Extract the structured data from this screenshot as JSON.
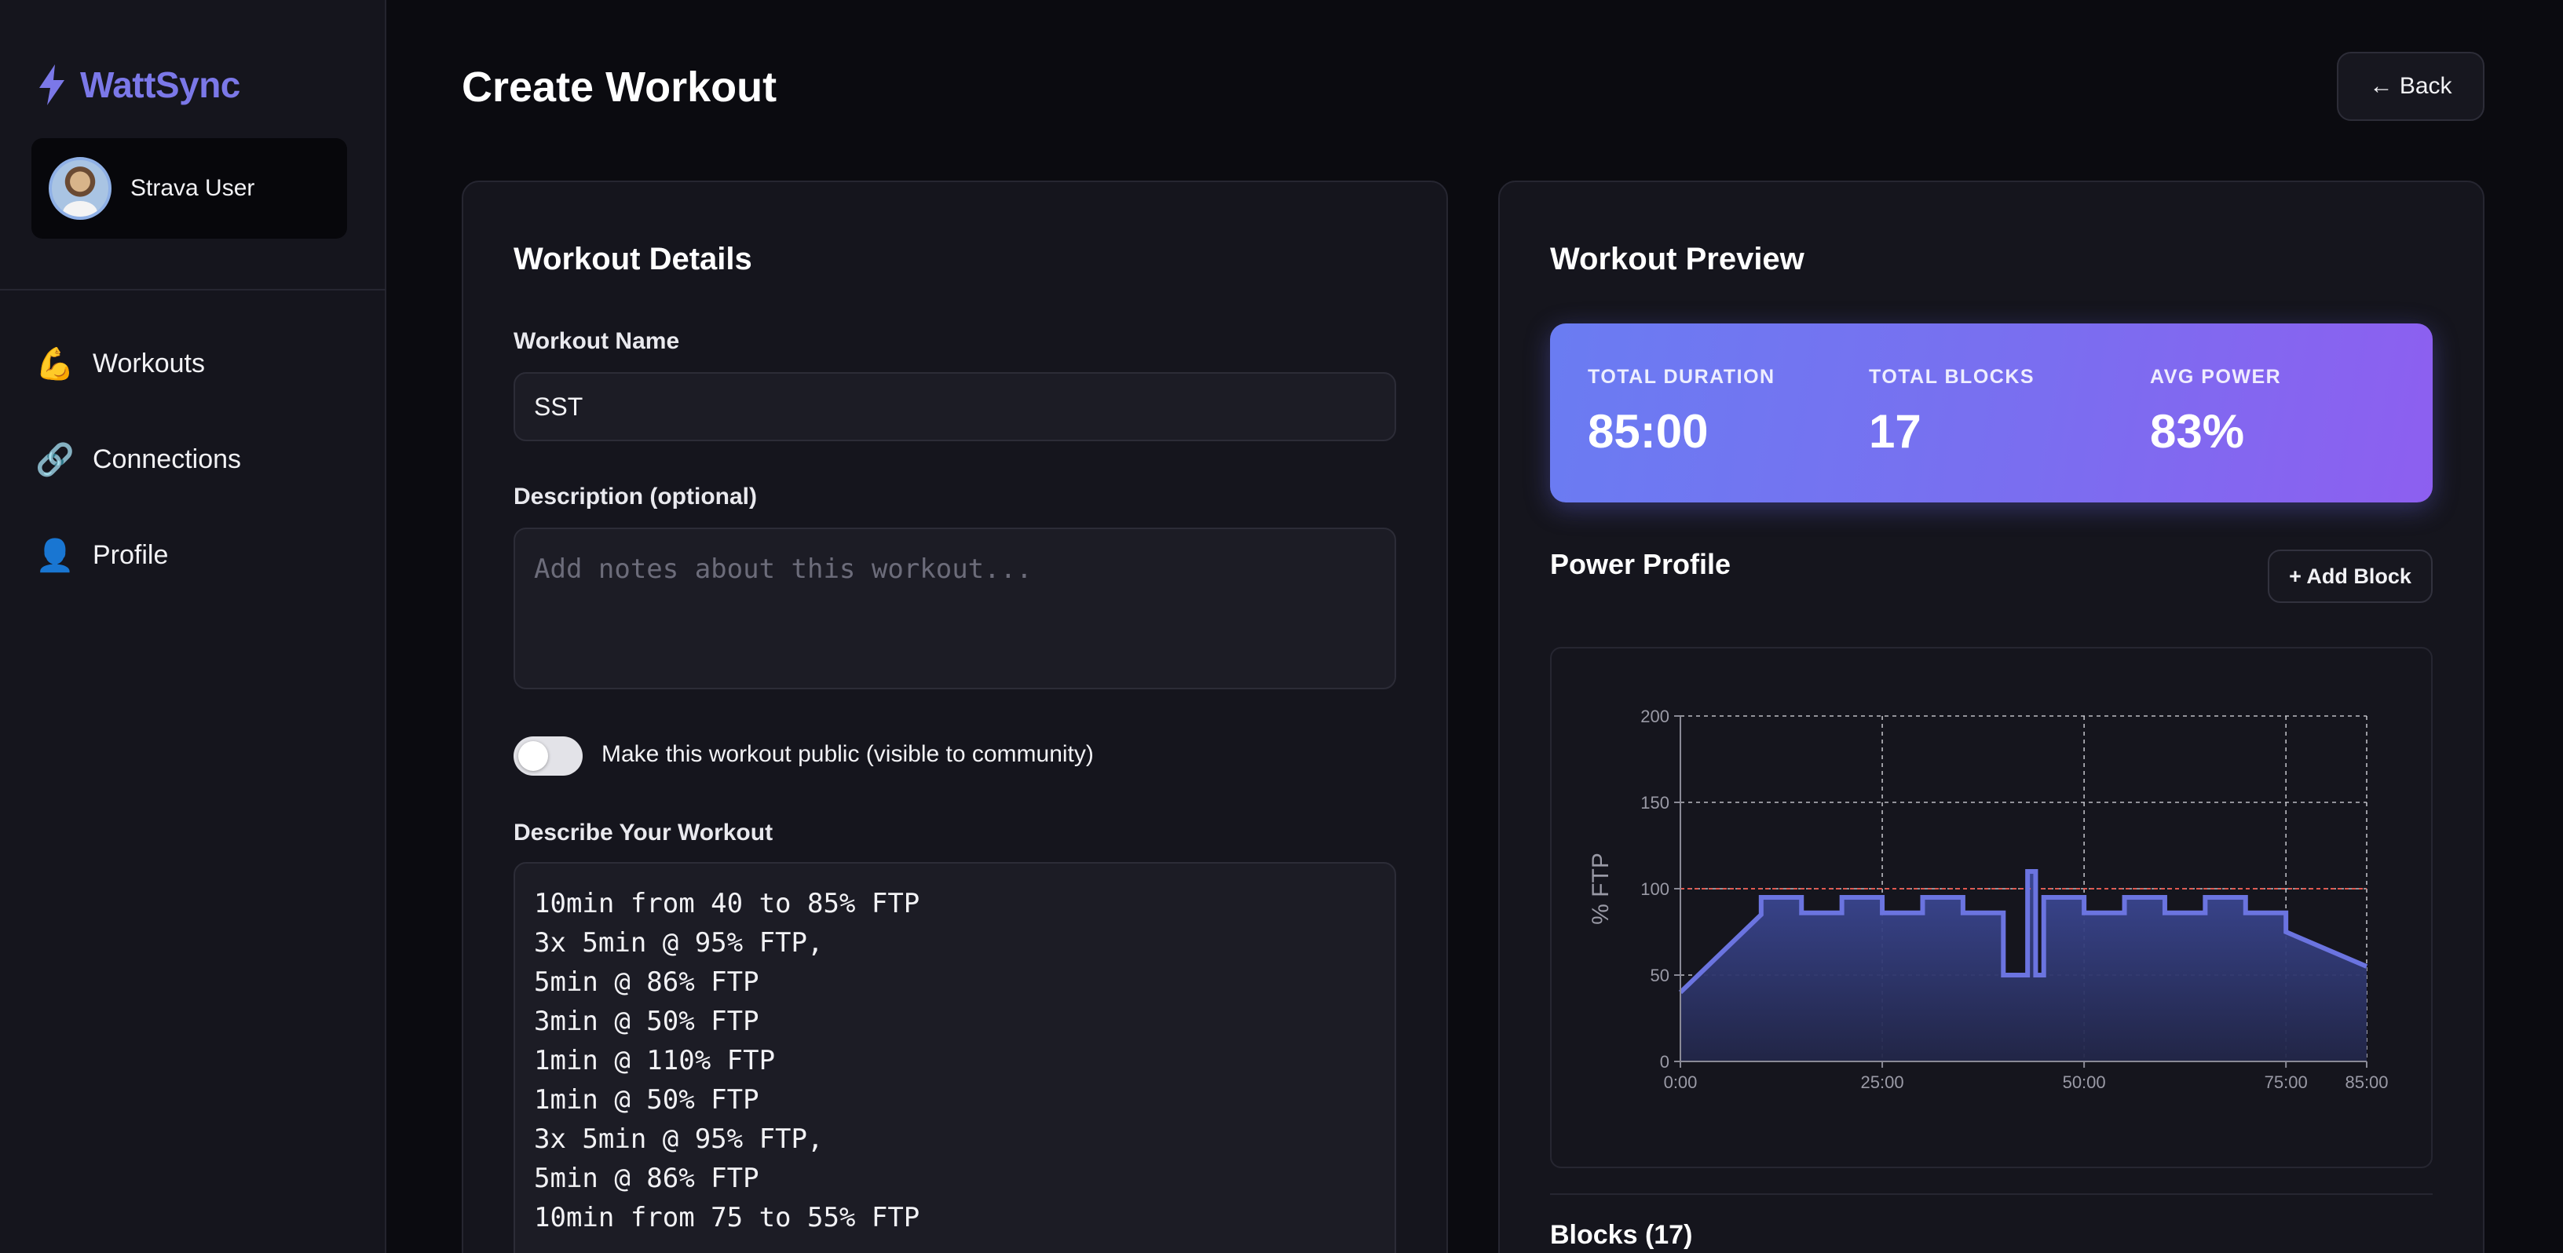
{
  "app": {
    "name": "WattSync",
    "brand_color": "#7b78e8",
    "accent_gradient": [
      "#6a7cf2",
      "#8d5ff0"
    ]
  },
  "user": {
    "name": "Strava User"
  },
  "nav": {
    "items": [
      {
        "label": "Workouts",
        "icon": "flexed-biceps-icon",
        "glyph": "💪"
      },
      {
        "label": "Connections",
        "icon": "link-icon",
        "glyph": "🔗"
      },
      {
        "label": "Profile",
        "icon": "user-silhouette-icon",
        "glyph": "👤"
      }
    ]
  },
  "header": {
    "title": "Create Workout",
    "back_label": "← Back"
  },
  "details": {
    "title": "Workout Details",
    "name_label": "Workout Name",
    "name_value": "SST",
    "description_label": "Description (optional)",
    "description_placeholder": "Add notes about this workout...",
    "public_toggle_label": "Make this workout public (visible to community)",
    "public_toggle_on": false,
    "describe_label": "Describe Your Workout",
    "describe_value": "10min from 40 to 85% FTP\n3x 5min @ 95% FTP,\n5min @ 86% FTP\n3min @ 50% FTP\n1min @ 110% FTP\n1min @ 50% FTP\n3x 5min @ 95% FTP,\n5min @ 86% FTP\n10min from 75 to 55% FTP"
  },
  "preview": {
    "title": "Workout Preview",
    "stats": [
      {
        "label": "TOTAL DURATION",
        "value": "85:00"
      },
      {
        "label": "TOTAL BLOCKS",
        "value": "17"
      },
      {
        "label": "AVG POWER",
        "value": "83%"
      }
    ],
    "power_profile_title": "Power Profile",
    "add_block_label": "+ Add Block",
    "blocks_title": "Blocks (17)"
  },
  "chart_data": {
    "type": "area",
    "title": "",
    "xlabel": "",
    "ylabel": "% FTP",
    "xlim": [
      0,
      85
    ],
    "ylim": [
      0,
      200
    ],
    "x_ticks": [
      0,
      25,
      50,
      75,
      85
    ],
    "x_tick_labels": [
      "0:00",
      "25:00",
      "50:00",
      "75:00",
      "85:00"
    ],
    "y_ticks": [
      0,
      50,
      100,
      150,
      200
    ],
    "grid": true,
    "reference_line": {
      "y": 100,
      "color": "#e0584f"
    },
    "line_color": "#6b74e0",
    "series": [
      {
        "x": [
          0,
          10,
          10,
          15,
          15,
          20,
          20,
          25,
          25,
          30,
          30,
          35,
          35,
          40,
          40,
          43,
          43,
          44,
          44,
          45,
          45,
          50,
          50,
          55,
          55,
          60,
          60,
          65,
          65,
          70,
          70,
          75,
          75,
          85
        ],
        "y": [
          40,
          85,
          95,
          95,
          86,
          86,
          95,
          95,
          86,
          86,
          95,
          95,
          86,
          86,
          50,
          50,
          110,
          110,
          50,
          50,
          95,
          95,
          86,
          86,
          95,
          95,
          86,
          86,
          95,
          95,
          86,
          86,
          75,
          55
        ]
      }
    ]
  }
}
